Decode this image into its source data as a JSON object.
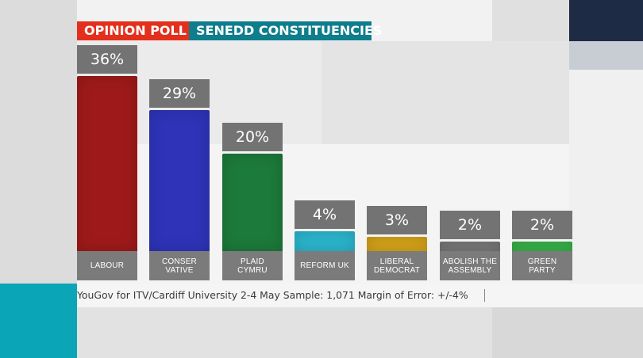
{
  "header": {
    "poll_label": "OPINION POLL",
    "topic_label": "SENEDD CONSTITUENCIES"
  },
  "colors": {
    "poll_tag": "#e3301d",
    "topic_tag": "#0e7d8c",
    "value_box": "#737373",
    "label_box": "#7b7b7b",
    "accent_teal": "#0aa6b8",
    "dark_navy": "#1e2b45"
  },
  "chart_data": {
    "type": "bar",
    "title": "",
    "xlabel": "",
    "ylabel": "",
    "categories": [
      "LABOUR",
      "CONSER\nVATIVE",
      "PLAID\nCYMRU",
      "REFORM UK",
      "LIBERAL\nDEMOCRAT",
      "ABOLISH THE\nASSEMBLY",
      "GREEN\nPARTY"
    ],
    "values": [
      36,
      29,
      20,
      4,
      3,
      2,
      2
    ],
    "value_labels": [
      "36%",
      "29%",
      "20%",
      "4%",
      "3%",
      "2%",
      "2%"
    ],
    "bar_colors": [
      "#9e1a1a",
      "#2e33b8",
      "#1c7a3a",
      "#2bb5cc",
      "#d6a419",
      "#7a7a7a",
      "#39b54a"
    ],
    "unit": "%",
    "ylim": [
      0,
      36
    ],
    "grid": false,
    "legend": "none"
  },
  "source": "YouGov for ITV/Cardiff University 2-4 May Sample: 1,071 Margin of Error: +/-4%"
}
